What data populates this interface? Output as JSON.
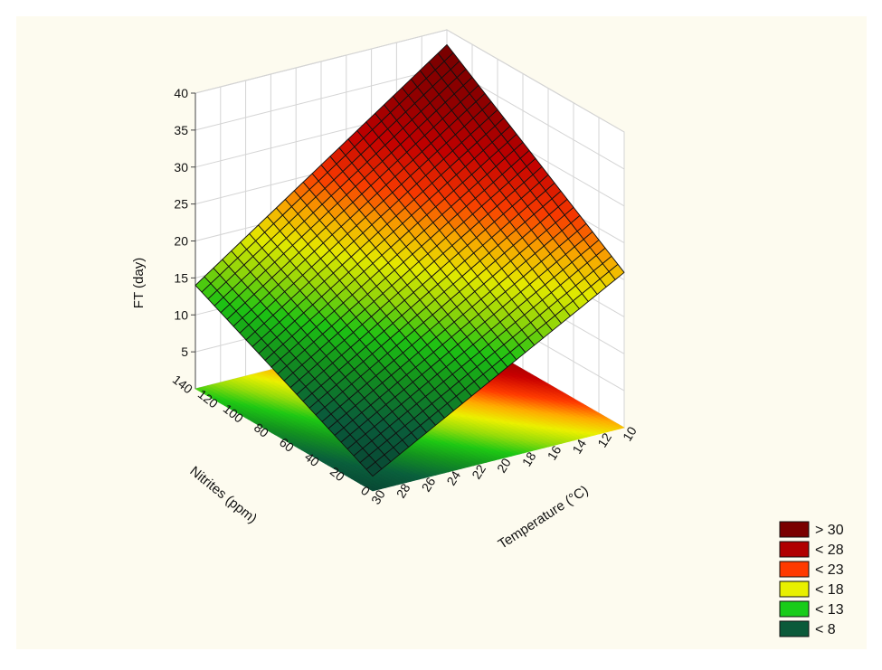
{
  "chart_data": {
    "type": "surface3d",
    "title": "",
    "x_axis": {
      "label": "Temperature (°C)",
      "range": [
        10,
        30
      ],
      "ticks": [
        10,
        12,
        14,
        16,
        18,
        20,
        22,
        24,
        26,
        28,
        30
      ]
    },
    "y_axis": {
      "label": "Nitrites (ppm)",
      "range": [
        0,
        140
      ],
      "ticks": [
        0,
        20,
        40,
        60,
        80,
        100,
        120,
        140
      ]
    },
    "z_axis": {
      "label": "FT (day)",
      "range": [
        0,
        40
      ],
      "ticks": [
        5,
        10,
        15,
        20,
        25,
        30,
        35,
        40
      ]
    },
    "surface_corners": [
      {
        "temperature": 10,
        "nitrites": 140,
        "ft": 38
      },
      {
        "temperature": 10,
        "nitrites": 0,
        "ft": 21
      },
      {
        "temperature": 30,
        "nitrites": 0,
        "ft": 2
      },
      {
        "temperature": 30,
        "nitrites": 140,
        "ft": 14
      }
    ],
    "grid": true,
    "contour_projection": "floor",
    "legend": {
      "position": "bottom-right",
      "entries": [
        {
          "label": "> 30",
          "color": "#7a0000"
        },
        {
          "label": "< 28",
          "color": "#b00000"
        },
        {
          "label": "< 23",
          "color": "#ff3a00"
        },
        {
          "label": "< 18",
          "color": "#e8f000"
        },
        {
          "label": "< 13",
          "color": "#19cc19"
        },
        {
          "label": "< 8",
          "color": "#0b5a3a"
        }
      ]
    }
  }
}
